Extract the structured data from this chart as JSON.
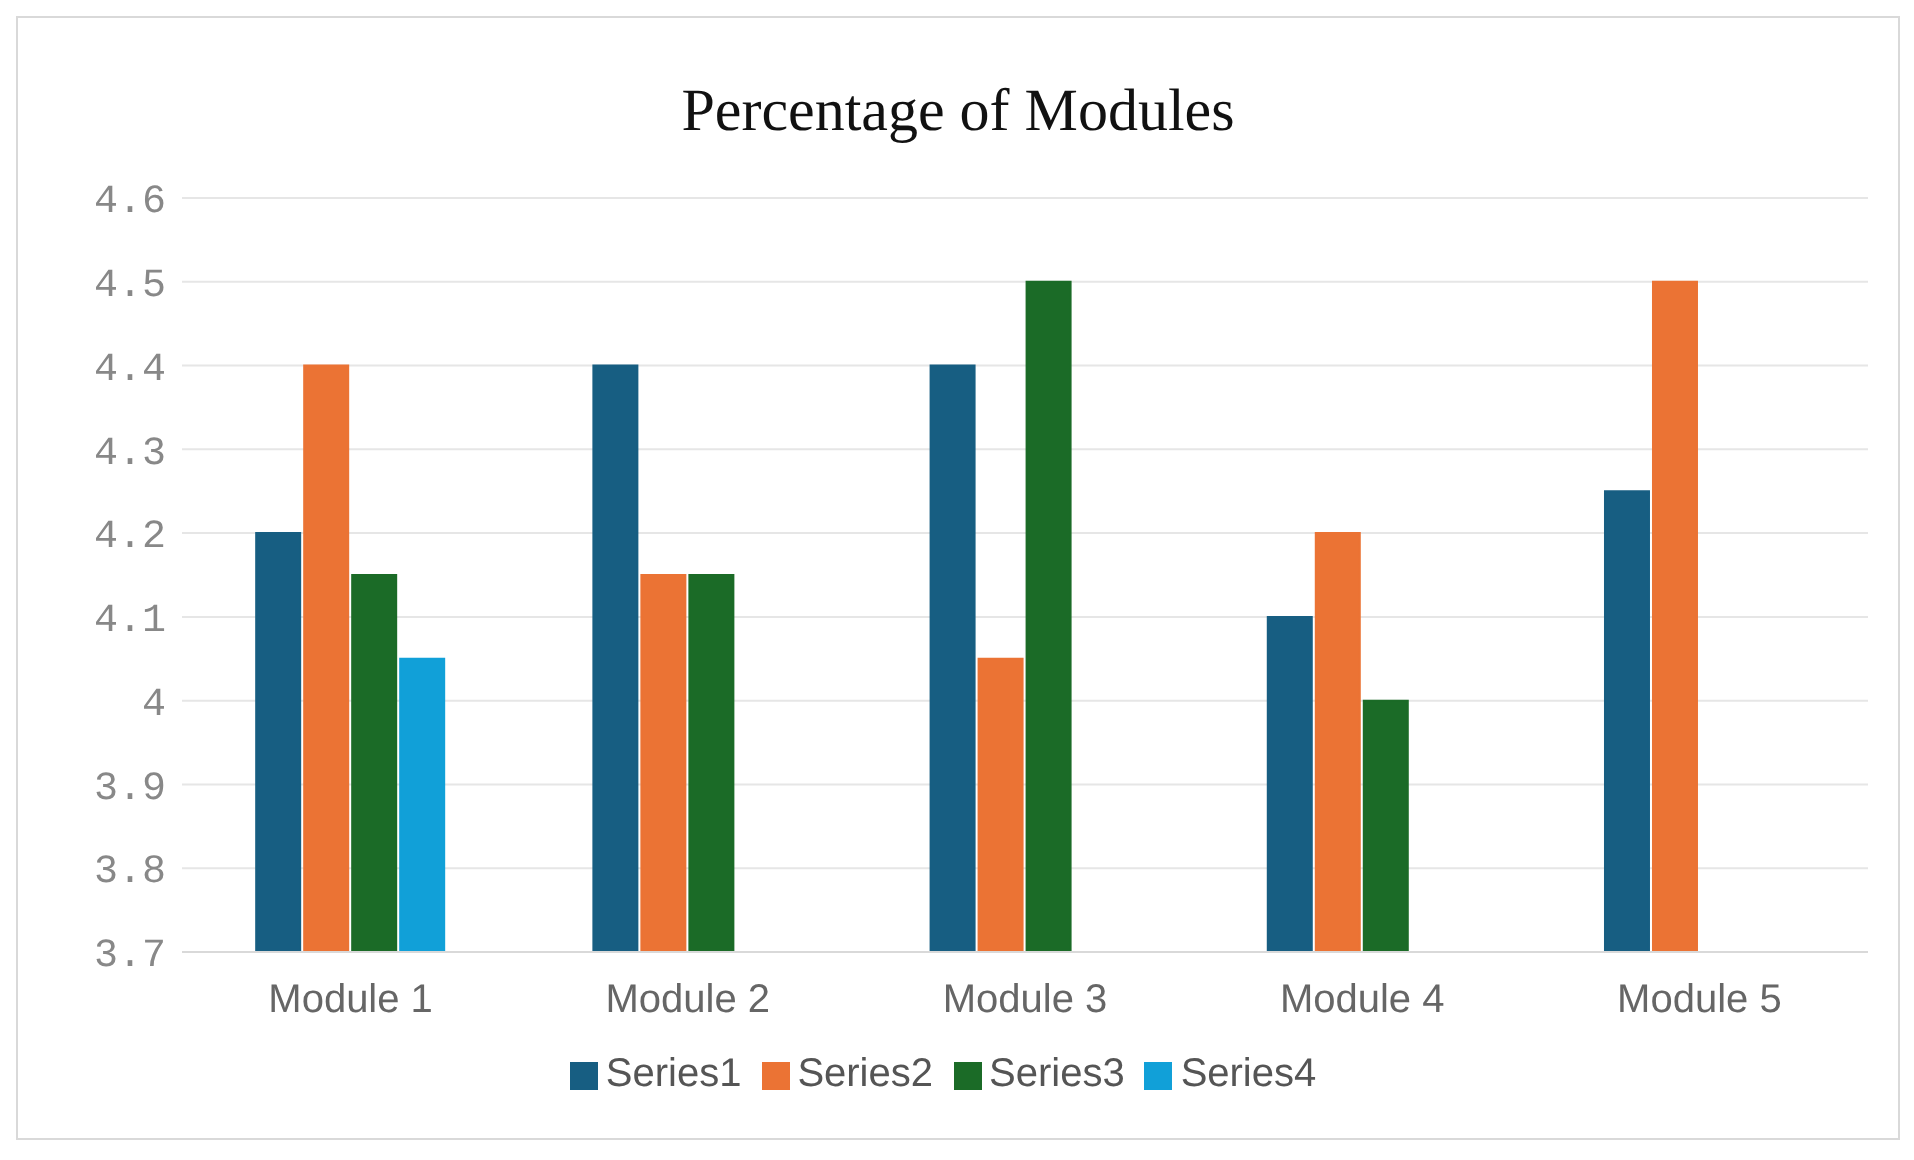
{
  "chart_data": {
    "type": "bar",
    "title": "Percentage of Modules",
    "categories": [
      "Module 1",
      "Module 2",
      "Module 3",
      "Module 4",
      "Module 5"
    ],
    "series": [
      {
        "name": "Series1",
        "color": "#175e82",
        "values": [
          4.2,
          4.4,
          4.4,
          4.1,
          4.25
        ]
      },
      {
        "name": "Series2",
        "color": "#eb7334",
        "values": [
          4.4,
          4.15,
          4.05,
          4.2,
          4.5
        ]
      },
      {
        "name": "Series3",
        "color": "#1b6b27",
        "values": [
          4.15,
          4.15,
          4.5,
          4.0,
          null
        ]
      },
      {
        "name": "Series4",
        "color": "#11a0d8",
        "values": [
          4.05,
          null,
          null,
          null,
          null
        ]
      }
    ],
    "ylim": [
      3.7,
      4.6
    ],
    "yticks": [
      3.7,
      3.8,
      3.9,
      4,
      4.1,
      4.2,
      4.3,
      4.4,
      4.5,
      4.6
    ],
    "grid": "y",
    "legend": "bottom"
  }
}
